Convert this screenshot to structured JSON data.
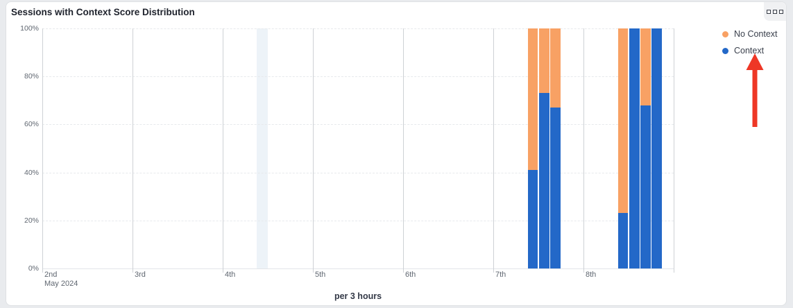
{
  "header": {
    "title": "Sessions with Context Score Distribution",
    "menu_icon": "three-squares-icon"
  },
  "legend": {
    "items": [
      {
        "label": "No Context",
        "color": "#f8a164",
        "series_key": "no_context"
      },
      {
        "label": "Context",
        "color": "#2368c8",
        "series_key": "context"
      }
    ]
  },
  "annotation": {
    "type": "red-arrow-up",
    "color": "#ee3726",
    "points_at": "Context legend item"
  },
  "chart_data": {
    "type": "bar",
    "stacked": true,
    "unit": "percent",
    "title": "Sessions with Context Score Distribution",
    "xlabel": "per 3 hours",
    "ylabel": "",
    "ylim": [
      0,
      100
    ],
    "grid": {
      "horizontal": "dashed",
      "vertical": "solid-per-day"
    },
    "y_tick_labels": [
      "0%",
      "20%",
      "40%",
      "60%",
      "80%",
      "100%"
    ],
    "x_tick_labels": [
      "2nd",
      "3rd",
      "4th",
      "5th",
      "6th",
      "7th",
      "8th"
    ],
    "x_first_tick_sublabel": "May 2024",
    "interval_hours": 3,
    "days_shown": 7,
    "series": [
      {
        "name": "Context",
        "color": "#2368c8"
      },
      {
        "name": "No Context",
        "color": "#f8a164"
      }
    ],
    "bars": [
      {
        "date": "May 7",
        "time": "09:00",
        "day_index": 5,
        "slot": 3,
        "context": 41,
        "no_context": 59
      },
      {
        "date": "May 7",
        "time": "12:00",
        "day_index": 5,
        "slot": 4,
        "context": 73,
        "no_context": 27
      },
      {
        "date": "May 7",
        "time": "15:00",
        "day_index": 5,
        "slot": 5,
        "context": 67,
        "no_context": 33
      },
      {
        "date": "May 8",
        "time": "09:00",
        "day_index": 6,
        "slot": 3,
        "context": 23,
        "no_context": 77
      },
      {
        "date": "May 8",
        "time": "12:00",
        "day_index": 6,
        "slot": 4,
        "context": 100,
        "no_context": 0
      },
      {
        "date": "May 8",
        "time": "15:00",
        "day_index": 6,
        "slot": 5,
        "context": 68,
        "no_context": 32
      },
      {
        "date": "May 8",
        "time": "18:00",
        "day_index": 6,
        "slot": 6,
        "context": 100,
        "no_context": 0
      }
    ],
    "highlight_slot": {
      "date": "May 4",
      "time": "09:00",
      "day_index": 2,
      "slot": 3,
      "color": "#edf3f8"
    }
  }
}
